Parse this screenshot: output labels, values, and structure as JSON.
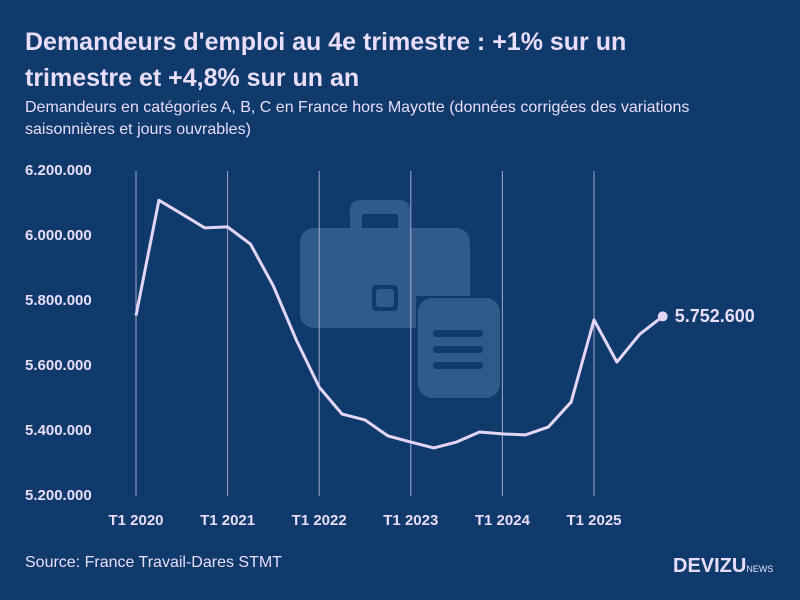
{
  "chart_data": {
    "type": "line",
    "title": "Demandeurs d'emploi au 4e trimestre : +1% sur un trimestre et +4,8% sur un an",
    "subtitle": "Demandeurs en catégories A, B, C en France hors Mayotte (données corrigées des variations saisonnières et jours ouvrables)",
    "source": "Source: France Travail-Dares STMT",
    "brand": "DEVIZU",
    "brand_suffix": "NEWS",
    "categories": [
      "T1 2020",
      null,
      null,
      null,
      "T1 2021",
      null,
      null,
      null,
      "T1 2022",
      null,
      null,
      null,
      "T1 2023",
      null,
      null,
      null,
      "T1 2024",
      null,
      null,
      null,
      "T1 2025",
      null,
      null,
      null
    ],
    "series": [
      {
        "name": "Demandeurs d'emploi",
        "color": "#e3d6f7",
        "values": [
          5755000,
          6110000,
          6068000,
          6025000,
          6028000,
          5975000,
          5846000,
          5680000,
          5535000,
          5452000,
          5434000,
          5385000,
          5366000,
          5348000,
          5366000,
          5397000,
          5391000,
          5388000,
          5412000,
          5489000,
          5742000,
          5612000,
          5698000,
          5752600
        ],
        "value_labels": [
          null,
          null,
          null,
          null,
          null,
          null,
          null,
          null,
          null,
          null,
          null,
          null,
          null,
          null,
          null,
          null,
          null,
          null,
          null,
          null,
          null,
          null,
          null,
          "5.752.600"
        ]
      }
    ],
    "ylim": [
      5200000,
      6200000
    ],
    "yticks": [
      {
        "value": 5200000,
        "label": "5.200.000"
      },
      {
        "value": 5400000,
        "label": "5.400.000"
      },
      {
        "value": 5600000,
        "label": "5.600.000"
      },
      {
        "value": 5800000,
        "label": "5.800.000"
      },
      {
        "value": 6000000,
        "label": "6.000.000"
      },
      {
        "value": 6200000,
        "label": "6.200.000"
      }
    ],
    "grid": "x"
  }
}
